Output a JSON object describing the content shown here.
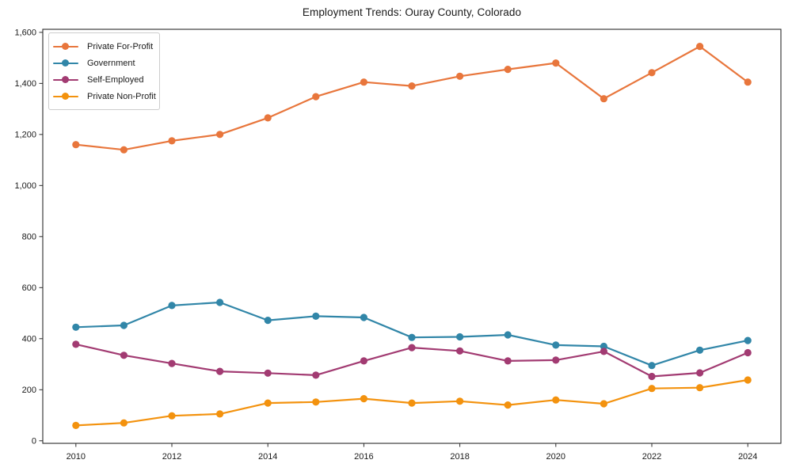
{
  "figure": {
    "title": "Employment Trends: Ouray County, Colorado",
    "background_color": "#ffffff",
    "text_color": "#1a1a1a",
    "spine_color": "#2b2b2b"
  },
  "chart_data": {
    "type": "line",
    "title": "Employment Trends: Ouray County, Colorado",
    "xlabel": "",
    "ylabel": "",
    "grid": false,
    "legend_position": "upper-left",
    "xlim": [
      2009.31,
      2024.69
    ],
    "ylim": [
      -10,
      1612
    ],
    "x": [
      2010,
      2011,
      2012,
      2013,
      2014,
      2015,
      2016,
      2017,
      2018,
      2019,
      2020,
      2021,
      2022,
      2023,
      2024
    ],
    "x_tick_values": [
      2010,
      2012,
      2014,
      2016,
      2018,
      2020,
      2022,
      2024
    ],
    "x_tick_labels": [
      "2010",
      "2012",
      "2014",
      "2016",
      "2018",
      "2020",
      "2022",
      "2024"
    ],
    "y_tick_values": [
      0,
      200,
      400,
      600,
      800,
      1000,
      1200,
      1400,
      1600
    ],
    "y_tick_labels": [
      "0",
      "200",
      "400",
      "600",
      "800",
      "1,000",
      "1,200",
      "1,400",
      "1,600"
    ],
    "series": [
      {
        "name": "Private For-Profit",
        "color": "#e8763c",
        "values": [
          1160,
          1140,
          1175,
          1200,
          1265,
          1348,
          1405,
          1390,
          1428,
          1455,
          1480,
          1340,
          1442,
          1545,
          1405
        ]
      },
      {
        "name": "Government",
        "color": "#3186a8",
        "values": [
          445,
          452,
          530,
          542,
          472,
          488,
          483,
          405,
          407,
          415,
          375,
          370,
          295,
          355,
          393
        ]
      },
      {
        "name": "Self-Employed",
        "color": "#a23b72",
        "values": [
          378,
          335,
          303,
          272,
          265,
          257,
          313,
          365,
          352,
          313,
          316,
          350,
          252,
          266,
          345
        ]
      },
      {
        "name": "Private Non-Profit",
        "color": "#f3920e",
        "values": [
          60,
          70,
          98,
          105,
          148,
          152,
          165,
          148,
          155,
          140,
          160,
          145,
          205,
          208,
          238
        ]
      }
    ]
  }
}
